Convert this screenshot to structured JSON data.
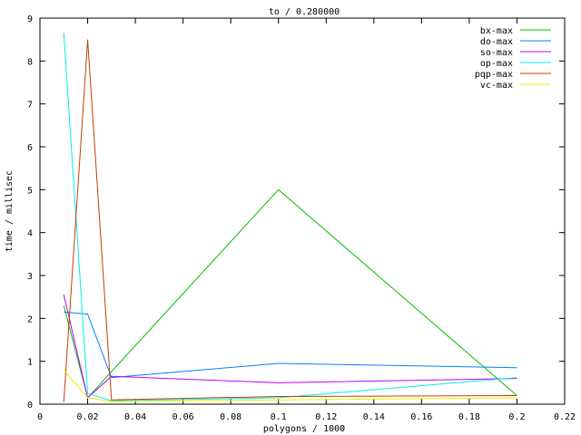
{
  "chart_data": {
    "type": "line",
    "title": "to / 0.280000",
    "xlabel": "polygons / 1000",
    "ylabel": "time / millisec",
    "xlim": [
      0,
      0.22
    ],
    "ylim": [
      0,
      9
    ],
    "xticks": [
      "0",
      "0.02",
      "0.04",
      "0.06",
      "0.08",
      "0.1",
      "0.12",
      "0.14",
      "0.16",
      "0.18",
      "0.2",
      "0.22"
    ],
    "yticks": [
      "0",
      "1",
      "2",
      "3",
      "4",
      "5",
      "6",
      "7",
      "8",
      "9"
    ],
    "legend_position": "top-right",
    "grid": false,
    "x": [
      0.01,
      0.02,
      0.03,
      0.1,
      0.2
    ],
    "series": [
      {
        "name": "bx-max",
        "color": "#00c000",
        "values": [
          2.3,
          0.15,
          0.76,
          5.0,
          0.2
        ]
      },
      {
        "name": "do-max",
        "color": "#0080ff",
        "values": [
          2.15,
          2.1,
          0.62,
          0.95,
          0.85
        ]
      },
      {
        "name": "so-max",
        "color": "#c000ff",
        "values": [
          2.55,
          0.15,
          0.65,
          0.5,
          0.6
        ]
      },
      {
        "name": "op-max",
        "color": "#00eeee",
        "values": [
          8.65,
          0.25,
          0.08,
          0.15,
          0.62
        ]
      },
      {
        "name": "pqp-max",
        "color": "#c04000",
        "values": [
          0.05,
          8.5,
          0.1,
          0.18,
          0.2
        ]
      },
      {
        "name": "vc-max",
        "color": "#eeee00",
        "values": [
          0.8,
          0.15,
          0.06,
          0.1,
          0.15
        ]
      }
    ]
  }
}
